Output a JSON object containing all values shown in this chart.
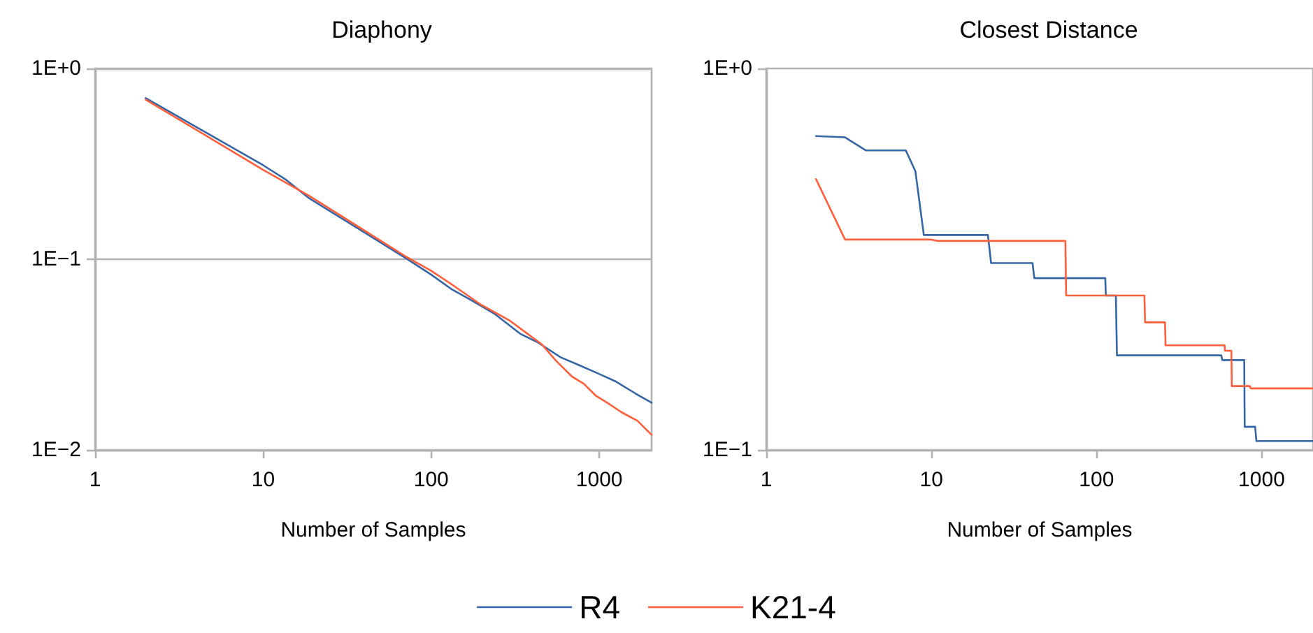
{
  "chart_data": [
    {
      "type": "line",
      "title": "Diaphony",
      "xlabel": "Number of Samples",
      "log": "xy",
      "grid": "y",
      "legend": "bottom",
      "marker": "none",
      "line_style": "solid",
      "xlim": [
        1,
        2048
      ],
      "xticks": [
        1,
        10,
        100,
        1000
      ],
      "ylim": [
        0.01,
        1
      ],
      "yticks": [
        {
          "value": 1,
          "label": "1E+0"
        },
        {
          "value": 0.1,
          "label": "1E−1"
        },
        {
          "value": 0.01,
          "label": "1E−2"
        }
      ],
      "series": [
        {
          "name": "R4",
          "color": "#3465a4",
          "x": [
            2,
            10,
            13.5,
            18.6,
            71,
            100,
            131,
            173,
            240,
            341,
            427,
            589,
            760,
            980,
            1260,
            1637,
            2048
          ],
          "values": [
            0.7,
            0.311,
            0.263,
            0.21,
            0.101,
            0.083,
            0.07,
            0.061,
            0.0515,
            0.0405,
            0.0368,
            0.0306,
            0.0278,
            0.0252,
            0.0228,
            0.0198,
            0.0177
          ]
        },
        {
          "name": "K21-4",
          "color": "#ff5e3a",
          "x": [
            2,
            10,
            18.6,
            71,
            100,
            131,
            198,
            291,
            376,
            455,
            552,
            690,
            810,
            950,
            1115,
            1350,
            1690,
            2048
          ],
          "values": [
            0.687,
            0.294,
            0.216,
            0.103,
            0.0869,
            0.0743,
            0.0577,
            0.0479,
            0.0405,
            0.0358,
            0.0294,
            0.0242,
            0.0222,
            0.0193,
            0.0177,
            0.0158,
            0.0142,
            0.012
          ]
        }
      ]
    },
    {
      "type": "line",
      "title": "Closest Distance",
      "xlabel": "Number of Samples",
      "log": "xy",
      "marker": "none",
      "line_style": "solid",
      "xlim": [
        1,
        2048
      ],
      "xticks": [
        1,
        10,
        100,
        1000
      ],
      "ylim": [
        0.1,
        1
      ],
      "yticks": [
        {
          "value": 1,
          "label": "1E+0"
        },
        {
          "value": 0.1,
          "label": "1E−1"
        }
      ],
      "series": [
        {
          "color": "#3465a4",
          "x": [
            2,
            3,
            4,
            7,
            8,
            9,
            22,
            23,
            41,
            42,
            113,
            114,
            131,
            133,
            570,
            578,
            785,
            790,
            914,
            930,
            2048
          ],
          "values": [
            0.665,
            0.66,
            0.61,
            0.61,
            0.538,
            0.366,
            0.366,
            0.309,
            0.309,
            0.282,
            0.282,
            0.254,
            0.254,
            0.177,
            0.177,
            0.172,
            0.172,
            0.115,
            0.115,
            0.1055,
            0.1055
          ]
        },
        {
          "color": "#ff5e3a",
          "x": [
            2,
            3,
            10,
            11,
            64.8,
            65.5,
            195,
            197,
            260,
            262,
            597,
            600,
            656,
            660,
            848,
            860,
            2048
          ],
          "values": [
            0.513,
            0.356,
            0.356,
            0.353,
            0.353,
            0.254,
            0.254,
            0.216,
            0.216,
            0.188,
            0.188,
            0.182,
            0.182,
            0.147,
            0.147,
            0.145,
            0.145
          ]
        }
      ]
    }
  ]
}
